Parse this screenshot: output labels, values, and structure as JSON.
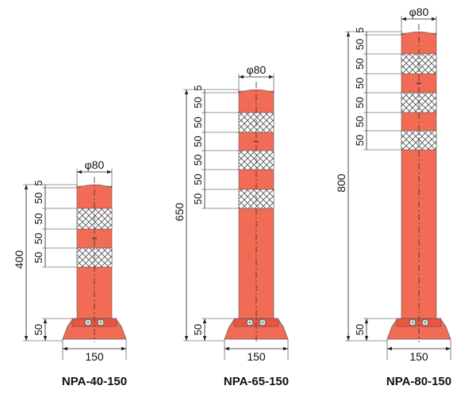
{
  "colors": {
    "post": "#f26b55",
    "post_stroke": "#555555",
    "reflector": "#ffffff",
    "crosshatch": "#555555",
    "base": "#f26b55",
    "bolt": "#555555",
    "line": "#222222"
  },
  "posts": [
    {
      "model": "NPA-40-150",
      "diameter_label": "φ80",
      "height_label": "400",
      "base_width_label": "150",
      "base_height_label": "50",
      "top_labels": [
        "5",
        "50",
        "50",
        "50",
        "50"
      ]
    },
    {
      "model": "NPA-65-150",
      "diameter_label": "φ80",
      "height_label": "650",
      "base_width_label": "150",
      "base_height_label": "50",
      "top_labels": [
        "5",
        "50",
        "50",
        "50",
        "50",
        "50",
        "50"
      ]
    },
    {
      "model": "NPA-80-150",
      "diameter_label": "φ80",
      "height_label": "800",
      "base_width_label": "150",
      "base_height_label": "50",
      "top_labels": [
        "5",
        "50",
        "50",
        "50",
        "50",
        "50",
        "50"
      ]
    }
  ]
}
